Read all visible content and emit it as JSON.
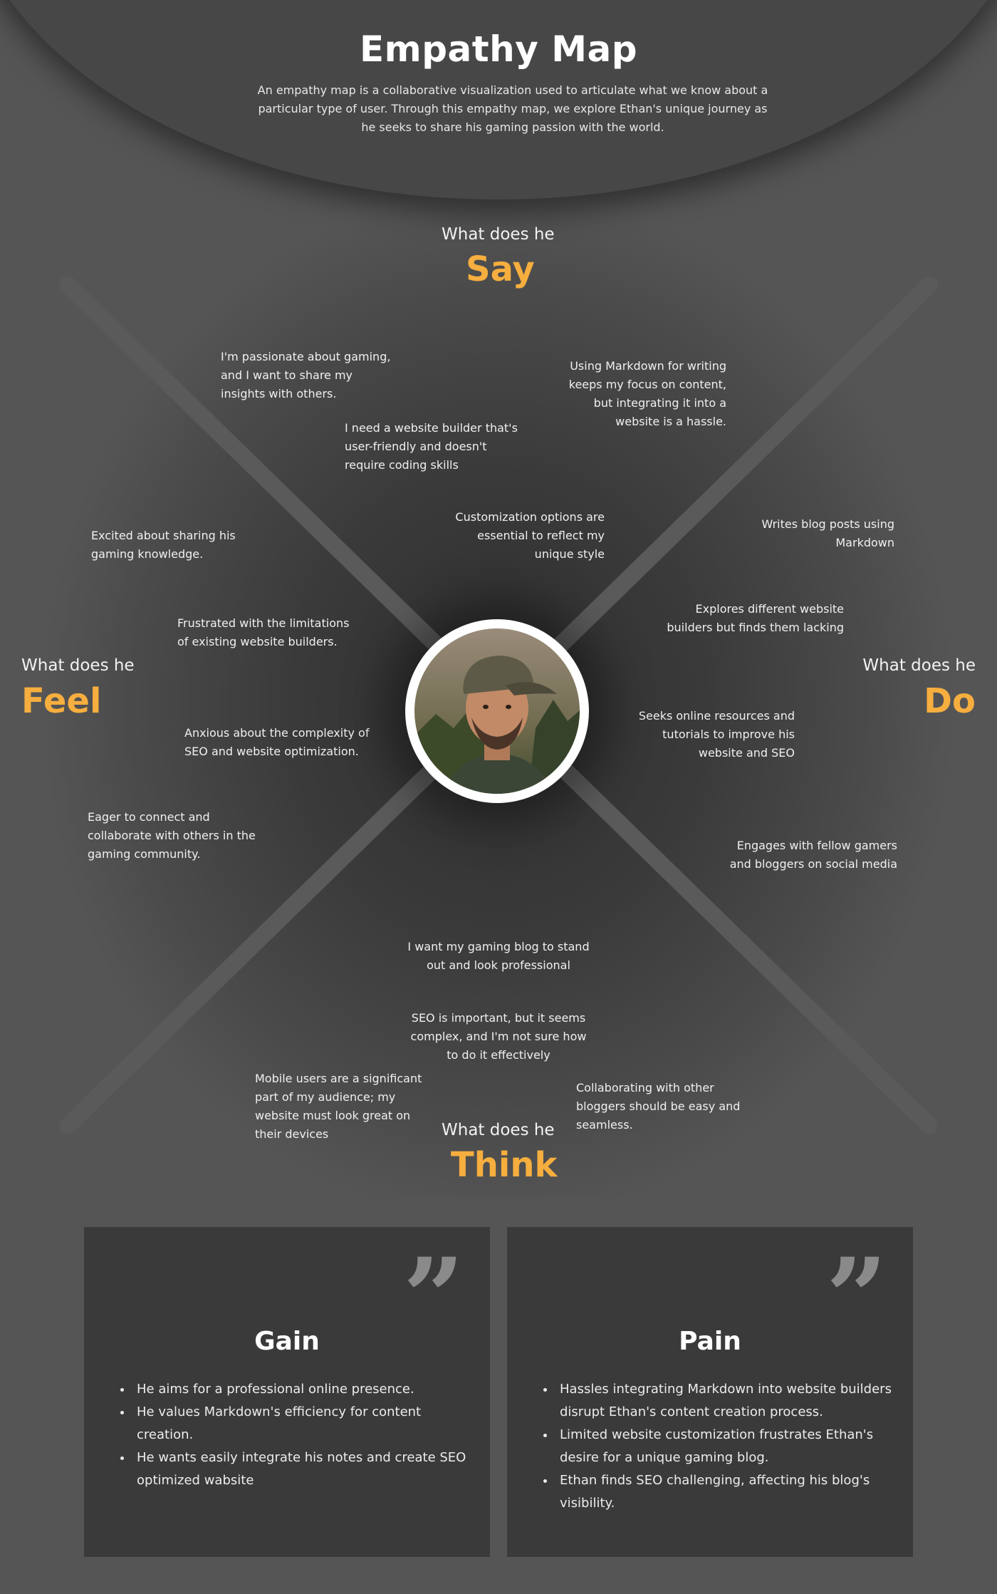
{
  "header": {
    "title": "Empathy Map",
    "intro": "An empathy map is a collaborative visualization used to articulate what we know about a particular type of user. Through this empathy map, we explore Ethan's unique journey as he seeks to share his gaming passion with the world."
  },
  "quadrants": {
    "say": {
      "prefix": "What does he",
      "word": "Say"
    },
    "feel": {
      "prefix": "What does he",
      "word": "Feel"
    },
    "do": {
      "prefix": "What does he",
      "word": "Do"
    },
    "think": {
      "prefix": "What does he",
      "word": "Think"
    }
  },
  "say_notes": [
    "I'm passionate about gaming, and I want to share my insights with others.",
    "Using Markdown for writing keeps my focus on content, but integrating it into a website is a hassle.",
    "I need a website builder that's user-friendly and doesn't require coding skills",
    "Customization options are essential to reflect my unique style"
  ],
  "feel_notes": [
    "Excited about sharing his gaming knowledge.",
    "Frustrated with the limitations of existing website builders.",
    "Anxious about the complexity of SEO and website optimization.",
    "Eager to connect and collaborate with others in the gaming community."
  ],
  "do_notes": [
    "Writes blog posts using Markdown",
    "Explores different website builders but finds them lacking",
    "Seeks online resources and tutorials to improve his website and SEO",
    "Engages with fellow gamers and bloggers on social media"
  ],
  "think_notes": [
    "I want my gaming blog to stand out and look professional",
    "SEO is important, but it seems complex, and I'm not sure how to do it effectively",
    "Mobile users are a significant part of my audience; my website must look great on their devices",
    "Collaborating with other bloggers should be easy and seamless."
  ],
  "gain": {
    "title": "Gain",
    "items": [
      "He aims for a professional online presence.",
      "He values Markdown's efficiency for content creation.",
      "He wants easily integrate his notes and create SEO optimized wabsite"
    ]
  },
  "pain": {
    "title": "Pain",
    "items": [
      "Hassles integrating Markdown into website builders disrupt Ethan's content creation process.",
      "Limited website customization frustrates Ethan's desire for a unique gaming blog.",
      "Ethan finds SEO challenging, affecting his blog's visibility."
    ]
  },
  "icons": {
    "quote": "quote-icon",
    "avatar": "user-photo"
  },
  "colors": {
    "accent": "#f6ae3f",
    "background": "#555555",
    "card": "#3a3a3a"
  }
}
